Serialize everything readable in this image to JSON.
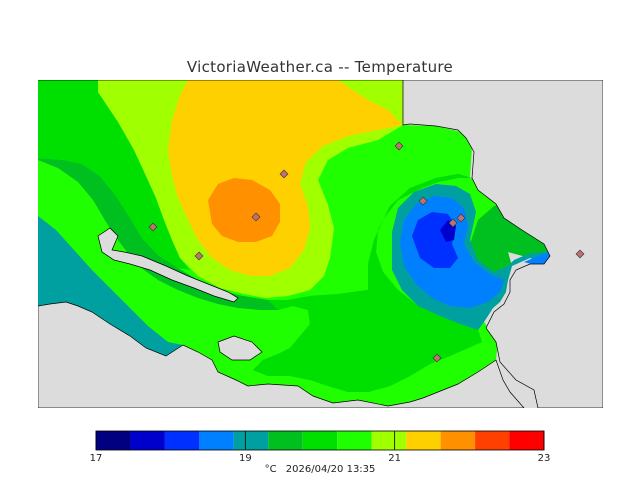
{
  "title": "VictoriaWeather.ca -- Temperature",
  "legend": {
    "colors": [
      "#000080",
      "#0000cc",
      "#0030ff",
      "#0080ff",
      "#00a0a0",
      "#00c020",
      "#00e000",
      "#20ff00",
      "#a0ff00",
      "#ffd000",
      "#ff9000",
      "#ff4000",
      "#ff0000"
    ],
    "ticks": [
      {
        "label": "17",
        "value": 17
      },
      {
        "label": "19",
        "value": 19
      },
      {
        "label": "21",
        "value": 21
      },
      {
        "label": "23",
        "value": 23
      }
    ],
    "min": 17,
    "max": 23
  },
  "caption": {
    "unit": "°C",
    "timestamp": "2026/04/20 13:35"
  },
  "colors": {
    "land_background": "#dcdcdc",
    "station_marker": "#c07070",
    "coast": "#000000"
  },
  "station_count": 10
}
